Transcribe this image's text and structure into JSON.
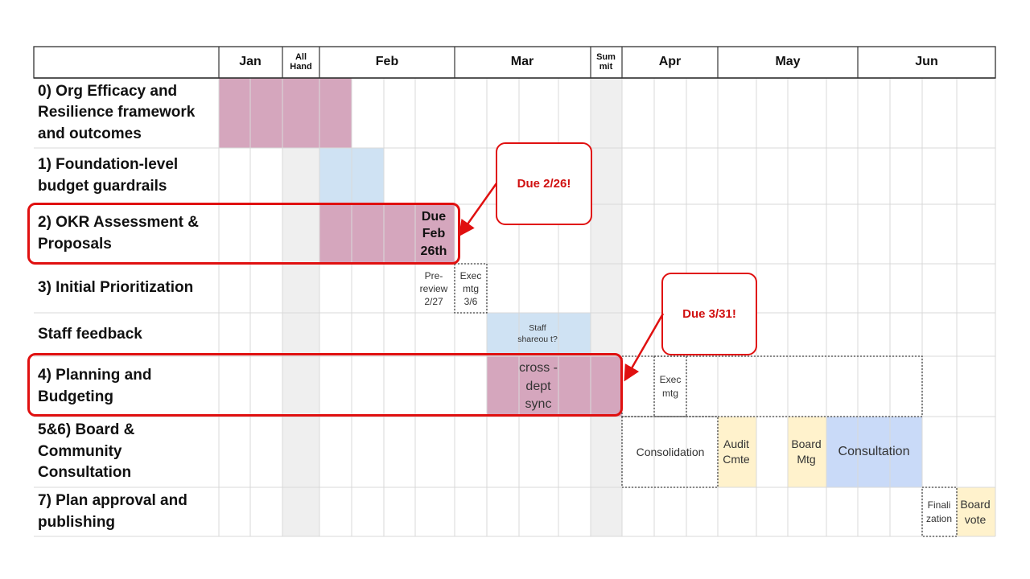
{
  "months": {
    "jan": "Jan",
    "allhand": "All Hand",
    "feb": "Feb",
    "mar": "Mar",
    "summit": "Sum mit",
    "apr": "Apr",
    "may": "May",
    "jun": "Jun"
  },
  "rows": {
    "r0": "0) Org Efficacy and Resilience framework and outcomes",
    "r1": "1) Foundation-level budget guardrails",
    "r2": "2) OKR Assessment & Proposals",
    "r3": "3) Initial Prioritization",
    "rs": "Staff feedback",
    "r4": "4) Planning and Budgeting",
    "r56": "5&6) Board & Community Consultation",
    "r7": "7) Plan approval and publishing"
  },
  "notes": {
    "due_feb": "Due Feb 26th",
    "pre_review": "Pre-review 2/27",
    "exec_mtg_36": "Exec mtg 3/6",
    "staff_shareout": "Staff shareou t?",
    "cross_dept": "cross -dept sync",
    "exec_mtg_apr": "Exec mtg",
    "consolidation": "Consolidation",
    "audit_cmte": "Audit Cmte",
    "board_mtg": "Board Mtg",
    "consultation": "Consultation",
    "finalization": "Finali zation",
    "board_vote": "Board vote"
  },
  "callouts": {
    "due_226": "Due 2/26!",
    "due_331": "Due 3/31!"
  },
  "colors": {
    "pink": "#d5a6bd",
    "light_blue": "#cfe2f3",
    "blue": "#c9daf8",
    "yellow": "#fff2cc",
    "gray_column": "#efefef",
    "grid_line": "#d9d9d9",
    "alert_red": "#e01010"
  }
}
